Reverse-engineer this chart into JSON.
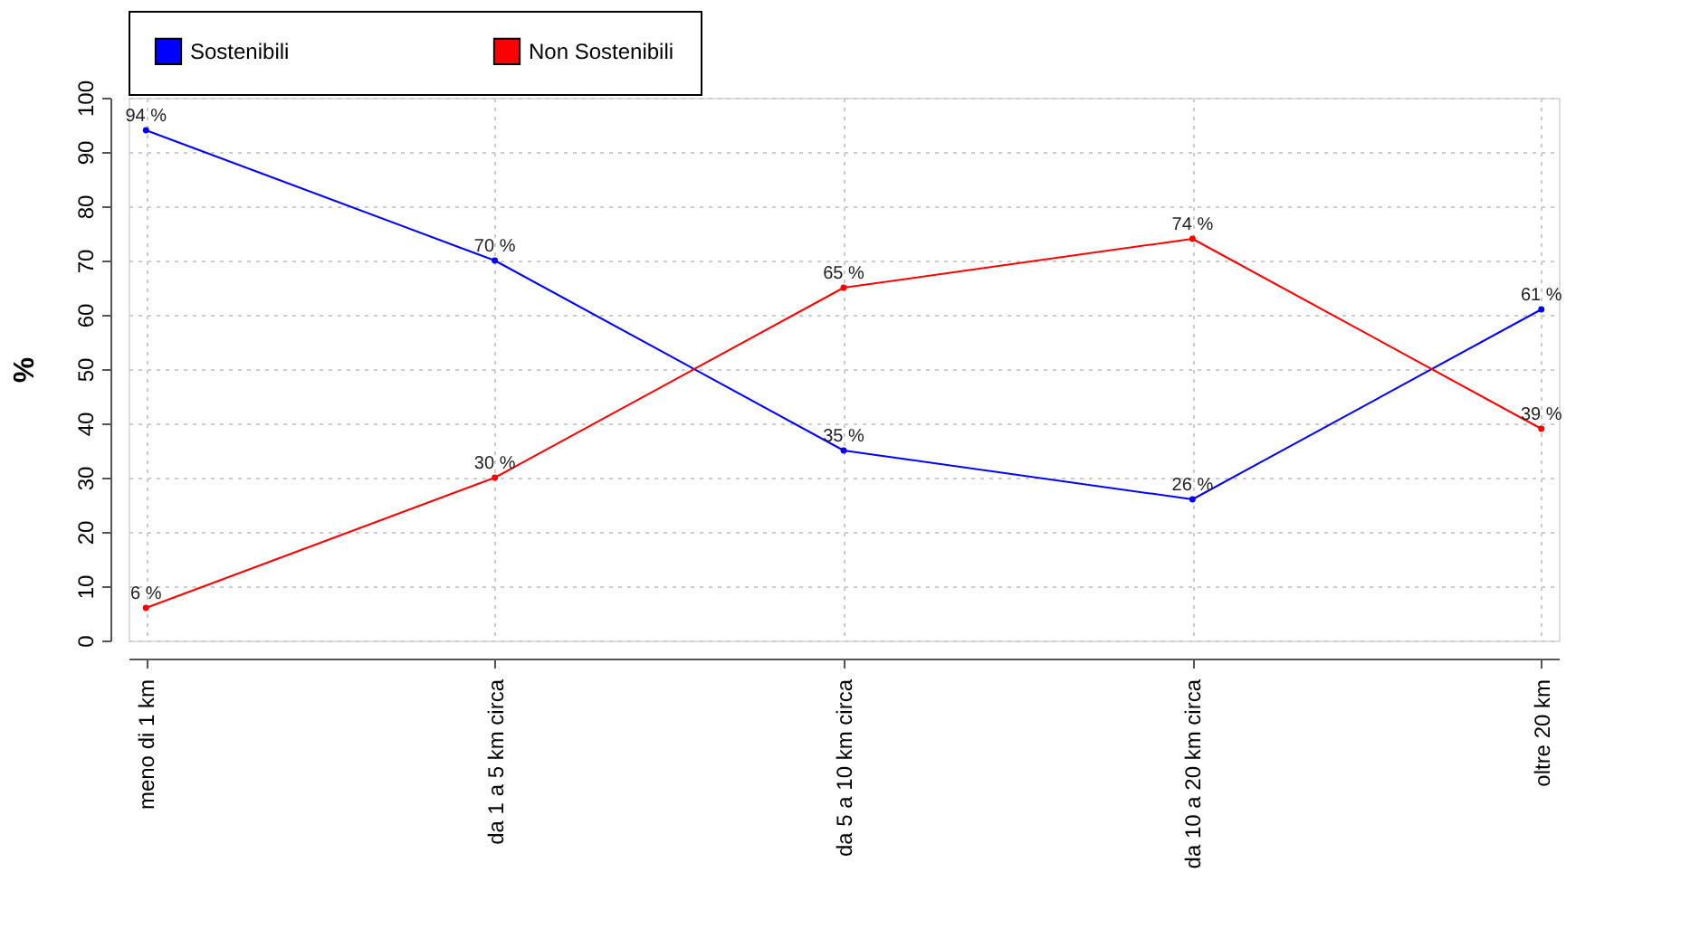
{
  "chart_data": {
    "type": "line",
    "ylabel": "%",
    "categories": [
      "meno di 1 km",
      "da 1 a 5 km circa",
      "da 5 a 10 km circa",
      "da 10 a 20 km circa",
      "oltre 20 km"
    ],
    "series": [
      {
        "name": "Sostenibili",
        "color": "#0000ff",
        "values": [
          94,
          70,
          35,
          26,
          61
        ],
        "value_labels": [
          "94 %",
          "70 %",
          "35 %",
          "26 %",
          "61 %"
        ]
      },
      {
        "name": "Non Sostenibili",
        "color": "#ff0000",
        "values": [
          6,
          30,
          65,
          74,
          39
        ],
        "value_labels": [
          "6 %",
          "30 %",
          "65 %",
          "74 %",
          "39 %"
        ]
      }
    ],
    "ylim": [
      0,
      100
    ],
    "yticks": [
      0,
      10,
      20,
      30,
      40,
      50,
      60,
      70,
      80,
      90,
      100
    ],
    "grid": true,
    "legend": "top",
    "marker": "circle",
    "line_style": "solid"
  }
}
